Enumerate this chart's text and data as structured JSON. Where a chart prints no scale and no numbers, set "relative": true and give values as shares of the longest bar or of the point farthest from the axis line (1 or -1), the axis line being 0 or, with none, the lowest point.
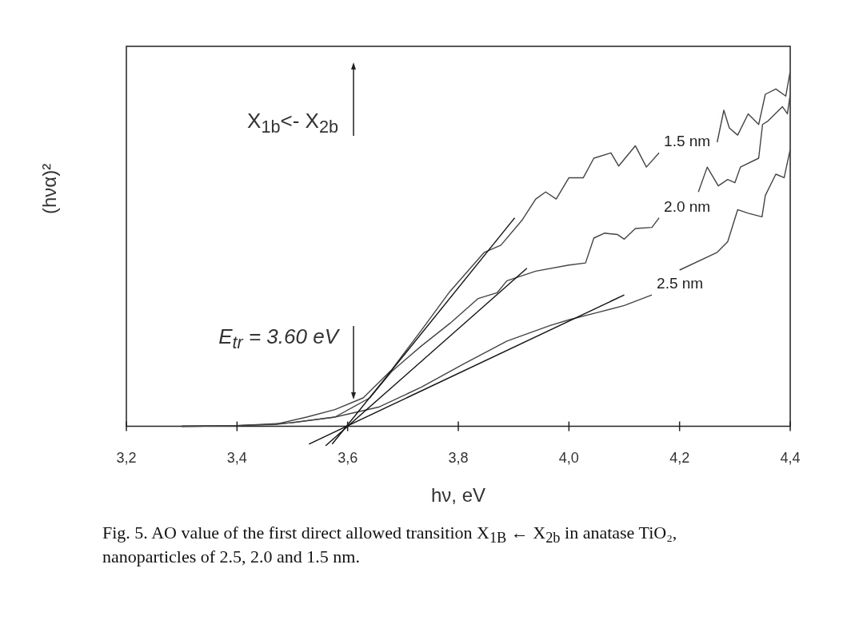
{
  "chart_data": {
    "type": "line",
    "relative": true,
    "xlabel": "hν, eV",
    "ylabel": "(hνα)²",
    "xlim": [
      3.2,
      4.4
    ],
    "xticks": [
      {
        "value": 3.2,
        "label": "3,2"
      },
      {
        "value": 3.4,
        "label": "3,4"
      },
      {
        "value": 3.6,
        "label": "3,6"
      },
      {
        "value": 3.8,
        "label": "3,8"
      },
      {
        "value": 4.0,
        "label": "4,0"
      },
      {
        "value": 4.2,
        "label": "4,2"
      },
      {
        "value": 4.4,
        "label": "4,4"
      }
    ],
    "tick_labels": "x",
    "series": [
      {
        "name": "1.5 nm",
        "color": "#444444",
        "x": [
          3.3,
          3.4,
          3.47,
          3.526,
          3.577,
          3.628,
          3.68,
          3.733,
          3.785,
          3.847,
          3.877,
          3.915,
          3.94,
          3.958,
          3.977,
          4.0,
          4.026,
          4.045,
          4.076,
          4.09,
          4.12,
          4.14,
          4.163,
          4.18,
          4.268,
          4.28,
          4.29,
          4.305,
          4.324,
          4.343,
          4.355,
          4.374,
          4.392,
          4.4
        ],
        "values": [
          0,
          0.002,
          0.006,
          0.026,
          0.047,
          0.08,
          0.16,
          0.27,
          0.38,
          0.49,
          0.51,
          0.58,
          0.64,
          0.66,
          0.64,
          0.7,
          0.7,
          0.755,
          0.77,
          0.733,
          0.79,
          0.73,
          0.77,
          null,
          0.8,
          0.89,
          0.84,
          0.82,
          0.88,
          0.85,
          0.935,
          0.95,
          0.93,
          1
        ]
      },
      {
        "name": "2.0 nm",
        "color": "#444444",
        "x": [
          3.3,
          3.4,
          3.5,
          3.577,
          3.64,
          3.68,
          3.733,
          3.785,
          3.836,
          3.87,
          3.888,
          3.94,
          4.0,
          4.03,
          4.045,
          4.064,
          4.088,
          4.1,
          4.12,
          4.15,
          4.163,
          4.2,
          4.234,
          4.25,
          4.27,
          4.287,
          4.3,
          4.31,
          4.343,
          4.35,
          4.36,
          4.386,
          4.395,
          4.4
        ],
        "values": [
          0,
          0.002,
          0.01,
          0.026,
          0.08,
          0.155,
          0.226,
          0.29,
          0.36,
          0.376,
          0.41,
          0.437,
          0.454,
          0.46,
          0.53,
          0.544,
          0.54,
          0.527,
          0.557,
          0.56,
          0.587,
          null,
          0.66,
          0.73,
          0.677,
          0.695,
          0.686,
          0.73,
          0.755,
          0.85,
          0.86,
          0.9,
          0.88,
          0.935
        ]
      },
      {
        "name": "2.5 nm",
        "color": "#444444",
        "x": [
          3.3,
          3.4,
          3.47,
          3.577,
          3.656,
          3.733,
          3.81,
          3.888,
          3.966,
          4.0,
          4.05,
          4.1,
          4.15,
          4.18,
          4.2,
          4.268,
          4.287,
          4.305,
          4.324,
          4.349,
          4.355,
          4.374,
          4.389,
          4.4
        ],
        "values": [
          0,
          0.002,
          0.005,
          0.026,
          0.054,
          0.11,
          0.176,
          0.24,
          0.284,
          0.3,
          0.32,
          0.34,
          0.37,
          null,
          0.44,
          0.49,
          0.52,
          0.61,
          0.6,
          0.59,
          0.65,
          0.71,
          0.7,
          0.78
        ]
      },
      {
        "type": "line",
        "color": "#111111",
        "x": [
          3.572,
          3.902
        ],
        "values": [
          -0.05,
          0.587
        ]
      },
      {
        "type": "line",
        "color": "#111111",
        "x": [
          3.56,
          3.924
        ],
        "values": [
          -0.055,
          0.445
        ]
      },
      {
        "type": "line",
        "color": "#111111",
        "x": [
          3.53,
          4.1
        ],
        "values": [
          -0.05,
          0.37
        ]
      }
    ],
    "annotations": [
      "X$_{1b}$<- X$_{2b}$",
      "E$_{tr}$ = 3.60 eV",
      "Fig. 5. AO value of the first direct allowed transition X$_{1B}$ ← X$_{2b}$ in anatase TiO₂, nanoparticles of 2.5, 2.0 and 1.5 nm."
    ]
  }
}
